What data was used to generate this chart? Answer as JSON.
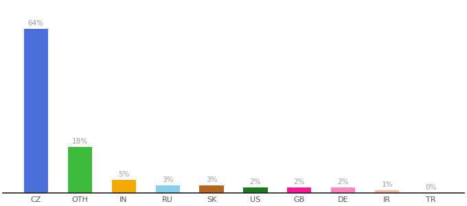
{
  "categories": [
    "CZ",
    "OTH",
    "IN",
    "RU",
    "SK",
    "US",
    "GB",
    "DE",
    "IR",
    "TR"
  ],
  "values": [
    64,
    18,
    5,
    3,
    3,
    2,
    2,
    2,
    1,
    0
  ],
  "labels": [
    "64%",
    "18%",
    "5%",
    "3%",
    "3%",
    "2%",
    "2%",
    "2%",
    "1%",
    "0%"
  ],
  "colors": [
    "#4a6fdb",
    "#3dbb3d",
    "#f5a800",
    "#87ceeb",
    "#b5651d",
    "#1a7a1a",
    "#ff1493",
    "#ff85c0",
    "#ffb3a0",
    "#e8e8e8"
  ],
  "background_color": "#ffffff",
  "label_color": "#9a9a9a",
  "label_fontsize": 7.5,
  "tick_fontsize": 8,
  "ylim": [
    0,
    74
  ],
  "bar_width": 0.55
}
